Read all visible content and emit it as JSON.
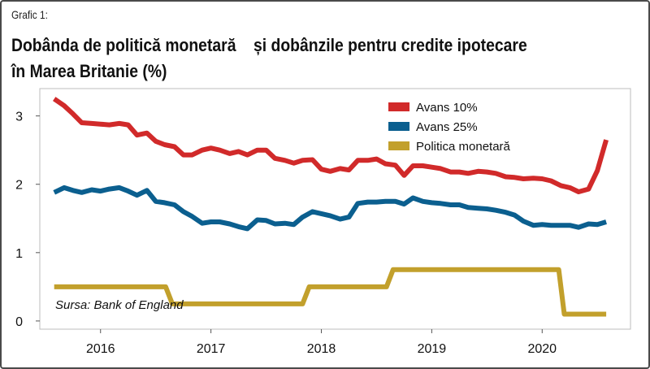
{
  "caption": "Grafic 1:",
  "title_line1": "Dobânda de politică monetară    și dobânzile pentru credite ipotecare",
  "title_line2": "în Marea Britanie (%)",
  "source": "Sursa: Bank of England",
  "colors": {
    "red": "#d12a2a",
    "blue": "#0b5f8f",
    "gold": "#c2a02c",
    "grid": "#d0d0d0"
  },
  "chart_data": {
    "type": "line",
    "xlim": [
      2015.45,
      2020.8
    ],
    "ylim": [
      -0.12,
      3.4
    ],
    "x_ticks": [
      {
        "value": 2016,
        "label": "2016"
      },
      {
        "value": 2017,
        "label": "2017"
      },
      {
        "value": 2018,
        "label": "2018"
      },
      {
        "value": 2019,
        "label": "2019"
      },
      {
        "value": 2020,
        "label": "2020"
      }
    ],
    "y_ticks": [
      {
        "value": 0,
        "label": "0"
      },
      {
        "value": 1,
        "label": "1"
      },
      {
        "value": 2,
        "label": "2"
      },
      {
        "value": 3,
        "label": "3"
      }
    ],
    "grid": false,
    "legend_position": "top-right",
    "series": [
      {
        "name": "Avans 10%",
        "color": "#d12a2a",
        "points": [
          [
            2015.58,
            3.25
          ],
          [
            2015.67,
            3.15
          ],
          [
            2015.75,
            3.03
          ],
          [
            2015.83,
            2.9
          ],
          [
            2015.92,
            2.89
          ],
          [
            2016.0,
            2.88
          ],
          [
            2016.08,
            2.87
          ],
          [
            2016.17,
            2.89
          ],
          [
            2016.25,
            2.87
          ],
          [
            2016.33,
            2.72
          ],
          [
            2016.42,
            2.75
          ],
          [
            2016.5,
            2.63
          ],
          [
            2016.58,
            2.58
          ],
          [
            2016.67,
            2.55
          ],
          [
            2016.75,
            2.43
          ],
          [
            2016.83,
            2.43
          ],
          [
            2016.92,
            2.5
          ],
          [
            2017.0,
            2.53
          ],
          [
            2017.08,
            2.5
          ],
          [
            2017.17,
            2.45
          ],
          [
            2017.25,
            2.48
          ],
          [
            2017.33,
            2.43
          ],
          [
            2017.42,
            2.5
          ],
          [
            2017.5,
            2.5
          ],
          [
            2017.58,
            2.38
          ],
          [
            2017.67,
            2.35
          ],
          [
            2017.75,
            2.31
          ],
          [
            2017.83,
            2.35
          ],
          [
            2017.92,
            2.36
          ],
          [
            2018.0,
            2.22
          ],
          [
            2018.08,
            2.19
          ],
          [
            2018.17,
            2.23
          ],
          [
            2018.25,
            2.21
          ],
          [
            2018.33,
            2.35
          ],
          [
            2018.42,
            2.35
          ],
          [
            2018.5,
            2.37
          ],
          [
            2018.58,
            2.3
          ],
          [
            2018.67,
            2.28
          ],
          [
            2018.75,
            2.13
          ],
          [
            2018.83,
            2.27
          ],
          [
            2018.92,
            2.27
          ],
          [
            2019.0,
            2.25
          ],
          [
            2019.08,
            2.23
          ],
          [
            2019.17,
            2.18
          ],
          [
            2019.25,
            2.18
          ],
          [
            2019.33,
            2.16
          ],
          [
            2019.42,
            2.19
          ],
          [
            2019.5,
            2.18
          ],
          [
            2019.58,
            2.16
          ],
          [
            2019.67,
            2.11
          ],
          [
            2019.75,
            2.1
          ],
          [
            2019.83,
            2.08
          ],
          [
            2019.92,
            2.09
          ],
          [
            2020.0,
            2.08
          ],
          [
            2020.08,
            2.05
          ],
          [
            2020.17,
            1.98
          ],
          [
            2020.25,
            1.95
          ],
          [
            2020.33,
            1.89
          ],
          [
            2020.42,
            1.93
          ],
          [
            2020.5,
            2.2
          ],
          [
            2020.58,
            2.65
          ]
        ]
      },
      {
        "name": "Avans 25%",
        "color": "#0b5f8f",
        "points": [
          [
            2015.58,
            1.88
          ],
          [
            2015.67,
            1.95
          ],
          [
            2015.75,
            1.91
          ],
          [
            2015.83,
            1.88
          ],
          [
            2015.92,
            1.92
          ],
          [
            2016.0,
            1.9
          ],
          [
            2016.08,
            1.93
          ],
          [
            2016.17,
            1.95
          ],
          [
            2016.25,
            1.9
          ],
          [
            2016.33,
            1.84
          ],
          [
            2016.42,
            1.91
          ],
          [
            2016.5,
            1.75
          ],
          [
            2016.58,
            1.73
          ],
          [
            2016.67,
            1.7
          ],
          [
            2016.75,
            1.6
          ],
          [
            2016.83,
            1.53
          ],
          [
            2016.92,
            1.43
          ],
          [
            2017.0,
            1.45
          ],
          [
            2017.08,
            1.45
          ],
          [
            2017.17,
            1.42
          ],
          [
            2017.25,
            1.38
          ],
          [
            2017.33,
            1.35
          ],
          [
            2017.42,
            1.48
          ],
          [
            2017.5,
            1.47
          ],
          [
            2017.58,
            1.42
          ],
          [
            2017.67,
            1.43
          ],
          [
            2017.75,
            1.41
          ],
          [
            2017.83,
            1.52
          ],
          [
            2017.92,
            1.6
          ],
          [
            2018.0,
            1.57
          ],
          [
            2018.08,
            1.54
          ],
          [
            2018.17,
            1.49
          ],
          [
            2018.25,
            1.52
          ],
          [
            2018.33,
            1.72
          ],
          [
            2018.42,
            1.74
          ],
          [
            2018.5,
            1.74
          ],
          [
            2018.58,
            1.75
          ],
          [
            2018.67,
            1.75
          ],
          [
            2018.75,
            1.71
          ],
          [
            2018.83,
            1.8
          ],
          [
            2018.92,
            1.75
          ],
          [
            2019.0,
            1.73
          ],
          [
            2019.08,
            1.72
          ],
          [
            2019.17,
            1.7
          ],
          [
            2019.25,
            1.7
          ],
          [
            2019.33,
            1.66
          ],
          [
            2019.42,
            1.65
          ],
          [
            2019.5,
            1.64
          ],
          [
            2019.58,
            1.62
          ],
          [
            2019.67,
            1.59
          ],
          [
            2019.75,
            1.55
          ],
          [
            2019.83,
            1.46
          ],
          [
            2019.92,
            1.4
          ],
          [
            2020.0,
            1.41
          ],
          [
            2020.08,
            1.4
          ],
          [
            2020.17,
            1.4
          ],
          [
            2020.25,
            1.4
          ],
          [
            2020.33,
            1.37
          ],
          [
            2020.42,
            1.42
          ],
          [
            2020.5,
            1.41
          ],
          [
            2020.58,
            1.45
          ]
        ]
      },
      {
        "name": "Politica monetară",
        "color": "#c2a02c",
        "points": [
          [
            2015.58,
            0.5
          ],
          [
            2016.59,
            0.5
          ],
          [
            2016.65,
            0.25
          ],
          [
            2017.83,
            0.25
          ],
          [
            2017.89,
            0.5
          ],
          [
            2018.59,
            0.5
          ],
          [
            2018.65,
            0.75
          ],
          [
            2020.15,
            0.75
          ],
          [
            2020.2,
            0.1
          ],
          [
            2020.58,
            0.1
          ]
        ]
      }
    ]
  }
}
